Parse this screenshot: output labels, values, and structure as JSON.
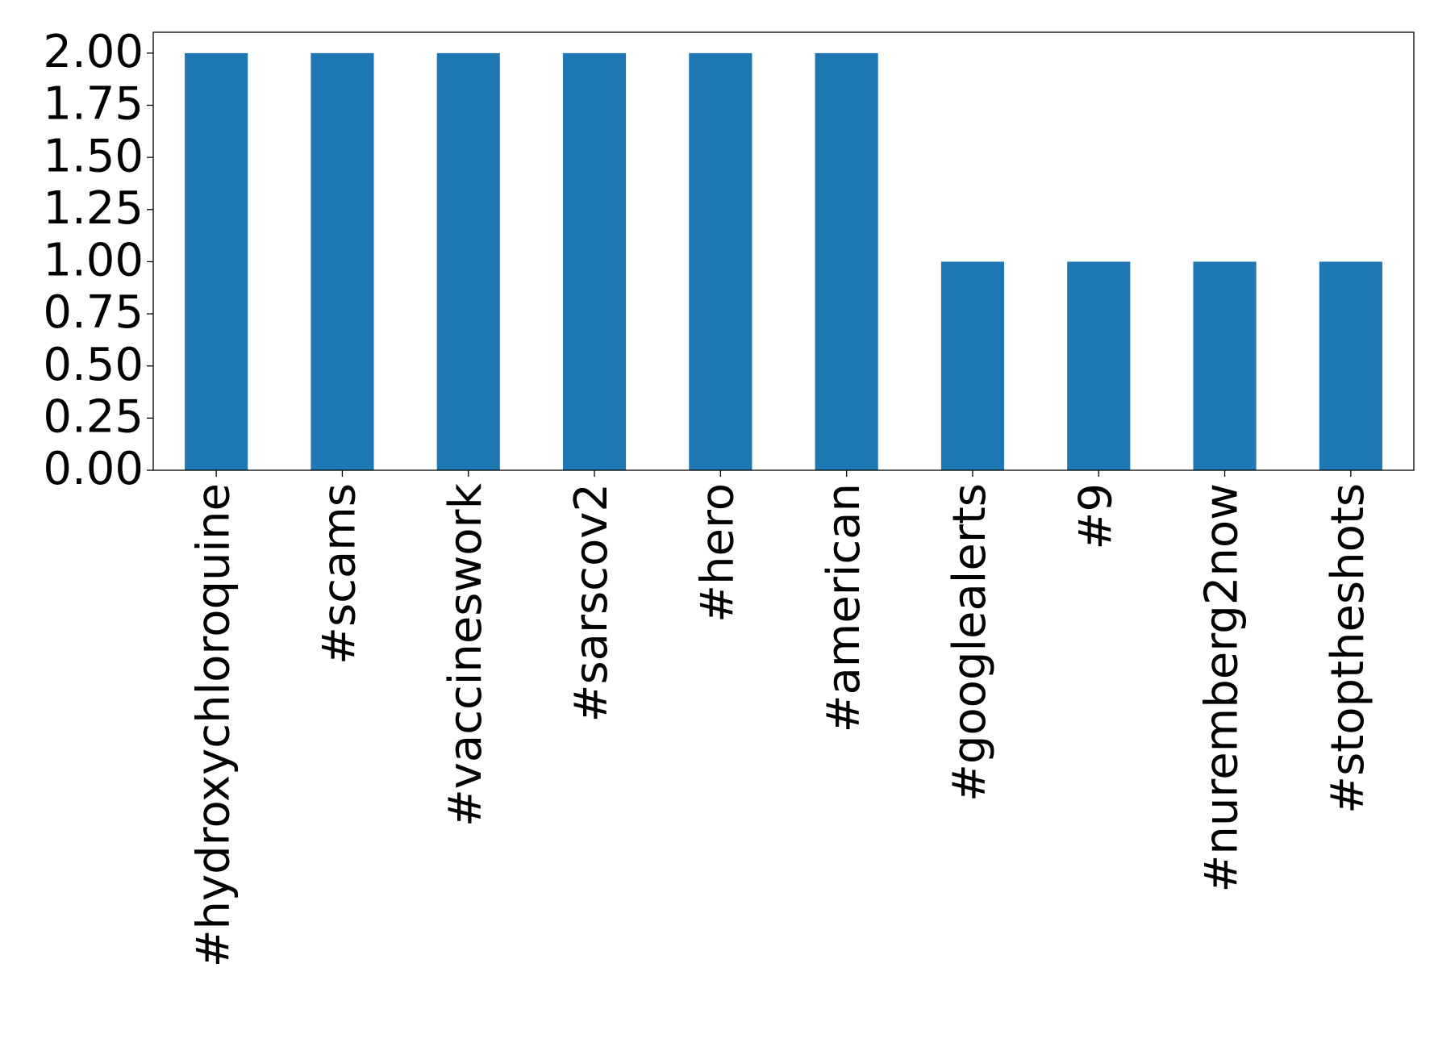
{
  "chart_data": {
    "type": "bar",
    "categories": [
      "#hydroxychloroquine",
      "#scams",
      "#vaccineswork",
      "#sarscov2",
      "#hero",
      "#american",
      "#googlealerts",
      "#9",
      "#nuremberg2now",
      "#stoptheshots"
    ],
    "values": [
      2,
      2,
      2,
      2,
      2,
      2,
      1,
      1,
      1,
      1
    ],
    "color": "#1f77b4",
    "ylim": [
      0,
      2.1
    ],
    "yticks": [
      {
        "value": 0,
        "label": "0.00"
      },
      {
        "value": 0.25,
        "label": "0.25"
      },
      {
        "value": 0.5,
        "label": "0.50"
      },
      {
        "value": 0.75,
        "label": "0.75"
      },
      {
        "value": 1,
        "label": "1.00"
      },
      {
        "value": 1.25,
        "label": "1.25"
      },
      {
        "value": 1.5,
        "label": "1.50"
      },
      {
        "value": 1.75,
        "label": "1.75"
      },
      {
        "value": 2,
        "label": "2.00"
      }
    ],
    "grid": false
  }
}
